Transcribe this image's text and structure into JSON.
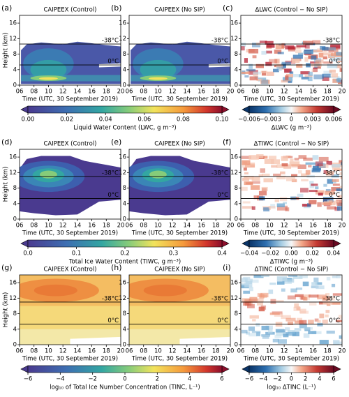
{
  "figure": {
    "xlim": [
      6,
      20
    ],
    "ylim": [
      0,
      18
    ],
    "xticks": [
      {
        "value": 6,
        "label": "06"
      },
      {
        "value": 8,
        "label": "08"
      },
      10,
      12,
      14,
      16,
      18,
      20
    ],
    "yticks": [
      0,
      4,
      8,
      12,
      16
    ],
    "xlabel": "Time (UTC, 30 September 2019)",
    "ylabel": "Height (km)",
    "rows": [
      {
        "field": "lwc",
        "panels": [
          {
            "label": "(a)",
            "title": "CAIPEEX (Control)",
            "isotherms": [
              {
                "label": "-38°C",
                "height": 10.6
              },
              {
                "label": "0°C",
                "height": 5.2
              }
            ]
          },
          {
            "label": "(b)",
            "title": "CAIPEEX (No SIP)",
            "isotherms": [
              {
                "label": "-38°C",
                "height": 10.6
              },
              {
                "label": "0°C",
                "height": 5.2
              }
            ]
          },
          {
            "label": "(c)",
            "title": "ΔLWC (Control − No SIP)",
            "isotherms": [
              {
                "label": "-38°C",
                "height": 10.6
              },
              {
                "label": "0°C",
                "height": 5.2
              }
            ]
          }
        ],
        "colorbars": [
          {
            "label": "Liquid Water Content (LWC, g m⁻³)",
            "lim": [
              0,
              0.1
            ],
            "ticks": [
              {
                "value": 0,
                "label": "0.00"
              },
              0.02,
              0.04,
              0.06,
              0.08,
              {
                "value": 0.1,
                "label": "0.10"
              }
            ]
          },
          {
            "label": "ΔLWC (g m⁻³)",
            "lim": [
              -0.006,
              0.006
            ],
            "ticks": [
              {
                "value": -0.006,
                "label": "−0.006"
              },
              {
                "value": -0.003,
                "label": "−0.003"
              },
              0,
              0.003,
              0.006
            ]
          }
        ]
      },
      {
        "field": "tiwc",
        "panels": [
          {
            "label": "(d)",
            "title": "CAIPEEX (Control)",
            "isotherms": [
              {
                "label": "-38°C",
                "height": 11
              },
              {
                "label": "0°C",
                "height": 5.3
              }
            ]
          },
          {
            "label": "(e)",
            "title": "CAIPEEX (No SIP)",
            "isotherms": [
              {
                "label": "-38°C",
                "height": 11
              },
              {
                "label": "0°C",
                "height": 5.3
              }
            ]
          },
          {
            "label": "(f)",
            "title": "ΔTIWC (Control − No SIP)",
            "isotherms": [
              {
                "label": "-38°C",
                "height": 11
              },
              {
                "label": "0°C",
                "height": 5.3
              }
            ]
          }
        ],
        "colorbars": [
          {
            "label": "Total Ice Water Content (TIWC, g m⁻³)",
            "lim": [
              0,
              0.4
            ],
            "ticks": [
              {
                "value": 0,
                "label": "0.0"
              },
              0.1,
              0.2,
              0.3,
              0.4
            ]
          },
          {
            "label": "ΔTIWC (g m⁻³)",
            "lim": [
              -0.04,
              0.04
            ],
            "ticks": [
              {
                "value": -0.04,
                "label": "−0.04"
              },
              {
                "value": -0.02,
                "label": "−0.02"
              },
              {
                "value": 0,
                "label": "0.00"
              },
              0.02,
              0.04
            ]
          }
        ]
      },
      {
        "field": "tinc",
        "panels": [
          {
            "label": "(g)",
            "title": "CAIPEEX (Control)",
            "isotherms": [
              {
                "label": "-38°C",
                "height": 11
              },
              {
                "label": "0°C",
                "height": 5.3
              }
            ]
          },
          {
            "label": "(h)",
            "title": "CAIPEEX (No SIP)",
            "isotherms": [
              {
                "label": "-38°C",
                "height": 11
              },
              {
                "label": "0°C",
                "height": 5.3
              }
            ]
          },
          {
            "label": "(i)",
            "title": "ΔTINC (Control − No SIP)",
            "isotherms": [
              {
                "label": "-38°C",
                "height": 11
              },
              {
                "label": "0°C",
                "height": 5.3
              }
            ]
          }
        ],
        "colorbars": [
          {
            "label": "log₁₀ of Total Ice Number Concentration (TINC, L⁻¹)",
            "lim": [
              -6,
              6
            ],
            "ticks": [
              {
                "value": -6,
                "label": "−6"
              },
              {
                "value": -4,
                "label": "−4"
              },
              {
                "value": -2,
                "label": "−2"
              },
              0,
              2,
              4,
              6
            ]
          },
          {
            "label": "log₁₀ ΔTINC (L⁻¹)",
            "lim": [
              -6,
              6
            ],
            "ticks": [
              {
                "value": -6,
                "label": "−6"
              },
              {
                "value": -4,
                "label": "−4"
              },
              {
                "value": -2,
                "label": "−2"
              },
              0,
              2,
              4,
              6
            ]
          }
        ]
      }
    ]
  }
}
